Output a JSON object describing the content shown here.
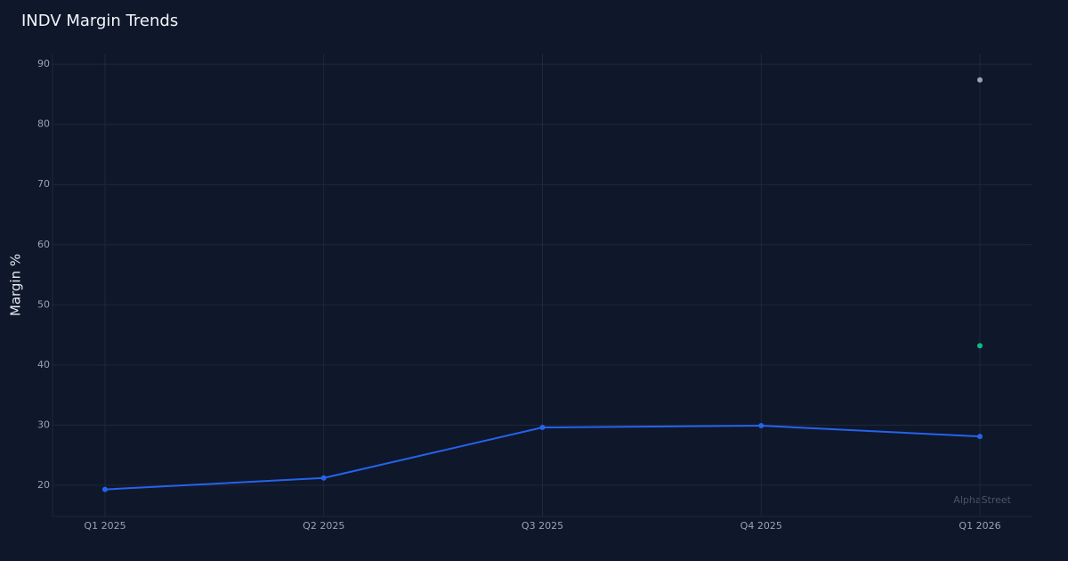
{
  "chart_data": {
    "type": "line",
    "title": "INDV Margin Trends",
    "y_label": "Margin %",
    "watermark": "AlphaStreet",
    "categories": [
      "Q1 2025",
      "Q2 2025",
      "Q3 2025",
      "Q4 2025",
      "Q1 2026"
    ],
    "series": [
      {
        "color": "#2563eb",
        "values": [
          19.3,
          21.2,
          29.6,
          29.9,
          28.1
        ]
      },
      {
        "color": "#9ca3af",
        "values": [
          null,
          null,
          null,
          null,
          87.4
        ]
      },
      {
        "color": "#10b981",
        "values": [
          null,
          null,
          null,
          null,
          43.2
        ]
      }
    ],
    "ylim": [
      14.8,
      91.8
    ],
    "yticks": [
      20,
      30,
      40,
      50,
      60,
      70,
      80,
      90
    ],
    "grid": true
  }
}
